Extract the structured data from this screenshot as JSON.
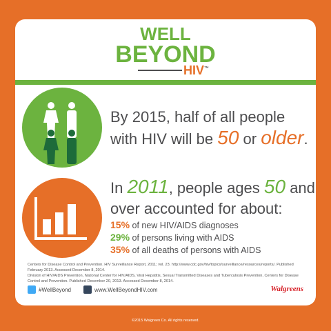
{
  "logo": {
    "line1": "WELL",
    "line2": "BEYOND",
    "line3": "HIV",
    "tm": "™"
  },
  "fact1": {
    "parts": [
      "By 2015, half of all people with HIV will be ",
      "50",
      " or ",
      "older",
      "."
    ]
  },
  "fact2": {
    "parts": [
      "In ",
      "2011",
      ", people ages ",
      "50",
      " and over accounted for about:"
    ],
    "stats": [
      {
        "value": "15%",
        "text": " of new HIV/AIDS diagnoses"
      },
      {
        "value": "29%",
        "text": " of persons living with AIDS"
      },
      {
        "value": "35%",
        "text": " of all deaths of persons with AIDS"
      }
    ]
  },
  "sources": [
    "Centers for Disease Control and Prevention. HIV Surveillance Report, 2011; vol. 23. http://www.cdc.gov/hiv/topics/surveillance/resources/reports/. Published February 2013. Accessed December 8, 2014.",
    "Division of HIV/AIDS Prevention, National Center for HIV/AIDS, Viral Hepatitis, Sexual Transmitted Diseases and Tuberculosis Prevention, Centers for Disease Control and Prevention. Published December 20, 2013. Accessed December 8, 2014."
  ],
  "footer": {
    "twitter": "#WellBeyond",
    "website": "www.WellBeyondHIV.com",
    "brand": "Walgreens",
    "copyright": "©2015 Walgreen Co. All rights reserved."
  }
}
